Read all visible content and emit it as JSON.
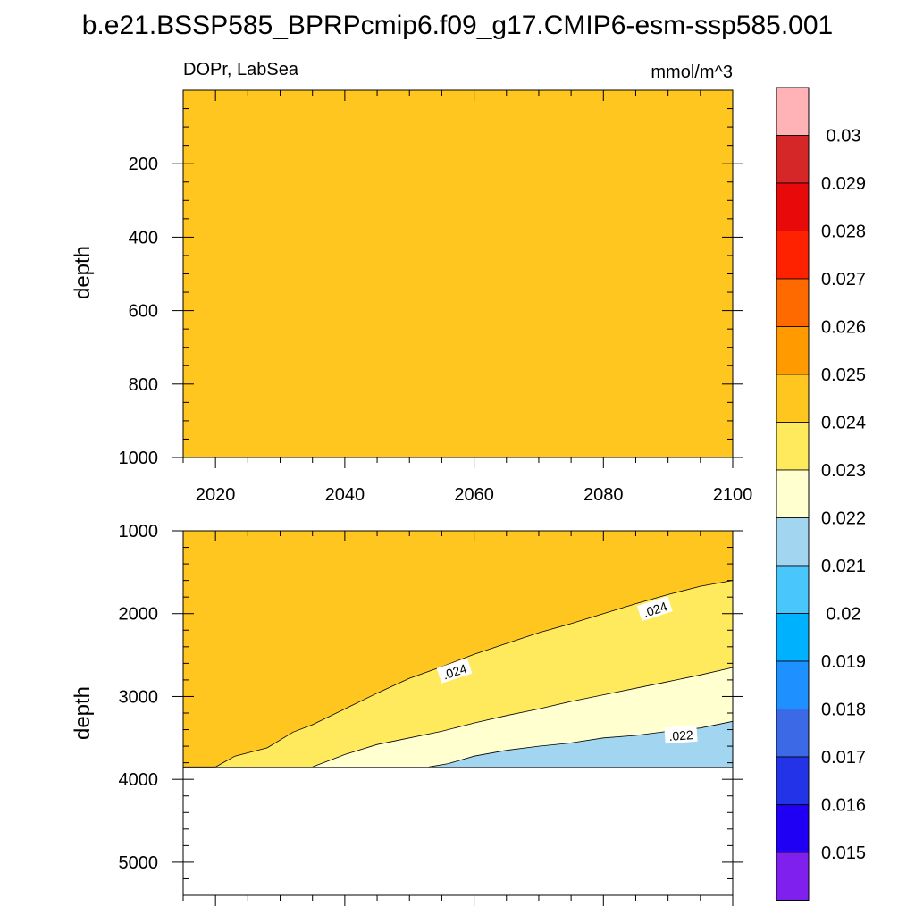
{
  "figure": {
    "title": "b.e21.BSSP585_BPRPcmip6.f09_g17.CMIP6-esm-ssp585.001",
    "left_label": "DOPr, LabSea",
    "right_label": "mmol/m^3"
  },
  "chart_data": [
    {
      "type": "heatmap",
      "panel": "upper",
      "title": "DOPr, LabSea",
      "units": "mmol/m^3",
      "xlabel": "",
      "ylabel": "depth",
      "xlim": [
        2015,
        2100
      ],
      "ylim": [
        1000,
        0
      ],
      "x_ticks": [
        2020,
        2040,
        2060,
        2080,
        2100
      ],
      "x_tick_labels": [
        "2020",
        "2040",
        "2060",
        "2080",
        "2100"
      ],
      "y_ticks": [
        200,
        400,
        600,
        800,
        1000
      ],
      "y_tick_labels": [
        "200",
        "400",
        "600",
        "800",
        "1000"
      ],
      "fill_range": [
        0.024,
        0.025
      ],
      "fill_color": "#fec61e"
    },
    {
      "type": "heatmap",
      "panel": "lower",
      "xlabel": "",
      "ylabel": "depth",
      "xlim": [
        2015,
        2100
      ],
      "ylim": [
        5400,
        1000
      ],
      "x_ticks": [
        2020,
        2040,
        2060,
        2080,
        2100
      ],
      "y_ticks": [
        1000,
        2000,
        3000,
        4000,
        5000
      ],
      "y_tick_labels": [
        "1000",
        "2000",
        "3000",
        "4000",
        "5000"
      ],
      "bottom_depth": 3850,
      "contours": [
        {
          "level": 0.024,
          "label": ".024",
          "x": [
            2015,
            2020,
            2023,
            2028,
            2032,
            2035,
            2040,
            2045,
            2050,
            2055,
            2060,
            2065,
            2070,
            2075,
            2080,
            2085,
            2090,
            2095,
            2100
          ],
          "y": [
            3850,
            3850,
            3720,
            3620,
            3430,
            3340,
            3150,
            2960,
            2780,
            2640,
            2490,
            2360,
            2230,
            2120,
            2000,
            1880,
            1770,
            1670,
            1600
          ]
        },
        {
          "level": 0.023,
          "label": "",
          "x": [
            2035,
            2040,
            2045,
            2050,
            2055,
            2060,
            2065,
            2070,
            2075,
            2080,
            2085,
            2090,
            2095,
            2100
          ],
          "y": [
            3850,
            3700,
            3580,
            3500,
            3420,
            3320,
            3230,
            3150,
            3060,
            2980,
            2900,
            2820,
            2740,
            2650
          ]
        },
        {
          "level": 0.022,
          "label": ".022",
          "x": [
            2053,
            2056,
            2060,
            2065,
            2070,
            2075,
            2080,
            2085,
            2090,
            2095,
            2100
          ],
          "y": [
            3850,
            3810,
            3720,
            3650,
            3600,
            3560,
            3500,
            3470,
            3420,
            3380,
            3300
          ]
        }
      ],
      "contour_label_positions": [
        {
          "label": ".024",
          "x": 2057,
          "y": 2700
        },
        {
          "label": ".024",
          "x": 2088,
          "y": 1950
        },
        {
          "label": ".022",
          "x": 2092,
          "y": 3470
        }
      ],
      "fill_colors": {
        "above_0.024": "#fec61e",
        "0.023_0.024": "#ffe95d",
        "0.022_0.023": "#ffffcf",
        "0.021_0.022": "#a2d5ef"
      }
    }
  ],
  "colorbar": {
    "labels": [
      "0.03",
      "0.029",
      "0.028",
      "0.027",
      "0.026",
      "0.025",
      "0.024",
      "0.023",
      "0.022",
      "0.021",
      "0.02",
      "0.019",
      "0.018",
      "0.017",
      "0.016",
      "0.015"
    ],
    "colors": [
      "#ffb3b6",
      "#d62728",
      "#e80a0a",
      "#ff2200",
      "#ff6a00",
      "#ff9a00",
      "#fec61e",
      "#ffe95d",
      "#ffffcf",
      "#a2d5ef",
      "#49c6fb",
      "#00b2fe",
      "#1e90ff",
      "#3c6ae6",
      "#2233e8",
      "#1f00f5",
      "#8020ee"
    ]
  }
}
